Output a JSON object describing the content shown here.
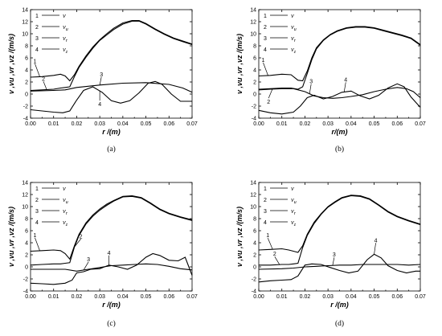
{
  "chart_data": [
    {
      "type": "line",
      "panel_label": "(a)",
      "xlabel": "r /(m)",
      "ylabel": "v ,vu ,vr ,vz /(m/s)",
      "xlim": [
        0,
        0.07
      ],
      "ylim": [
        -4,
        14
      ],
      "x_ticks": [
        "0.00",
        "0.01",
        "0.02",
        "0.03",
        "0.04",
        "0.05",
        "0.06",
        "0.07"
      ],
      "y_ticks": [
        "-4",
        "-2",
        "0",
        "2",
        "4",
        "6",
        "8",
        "10",
        "12",
        "14"
      ],
      "legend": {
        "numbers": [
          "1",
          "2",
          "3",
          "4"
        ],
        "symbols": [
          "v",
          "vu",
          "vr",
          "vz"
        ],
        "sub": [
          "",
          "u",
          "r",
          "z"
        ]
      },
      "curve_labels": [
        {
          "text": "1",
          "series": 0,
          "x": 0.004
        },
        {
          "text": "2",
          "series": 1,
          "x": 0.007
        },
        {
          "text": "3",
          "series": 2,
          "x": 0.03
        },
        {
          "text": "4",
          "series": 3,
          "x": 0.03
        }
      ],
      "series": [
        {
          "label": "1",
          "x": [
            0,
            0.005,
            0.01,
            0.013,
            0.015,
            0.017,
            0.019,
            0.021,
            0.024,
            0.027,
            0.03,
            0.033,
            0.036,
            0.04,
            0.044,
            0.047,
            0.05,
            0.054,
            0.058,
            0.062,
            0.066,
            0.07
          ],
          "y": [
            2.8,
            2.9,
            3.1,
            3.3,
            3.0,
            2.2,
            3.2,
            4.6,
            6.3,
            7.8,
            9.0,
            10.0,
            10.9,
            11.8,
            12.2,
            12.2,
            11.7,
            10.8,
            10.0,
            9.3,
            8.8,
            8.3
          ]
        },
        {
          "label": "2",
          "x": [
            0,
            0.005,
            0.01,
            0.013,
            0.015,
            0.017,
            0.019,
            0.021,
            0.024,
            0.027,
            0.03,
            0.033,
            0.036,
            0.04,
            0.044,
            0.047,
            0.05,
            0.054,
            0.058,
            0.062,
            0.066,
            0.07
          ],
          "y": [
            0.6,
            0.7,
            0.8,
            1.0,
            1.1,
            1.2,
            2.9,
            4.4,
            6.1,
            7.6,
            8.9,
            9.8,
            10.7,
            11.6,
            12.1,
            12.1,
            11.6,
            10.7,
            9.9,
            9.2,
            8.7,
            8.2
          ]
        },
        {
          "label": "3",
          "x": [
            0,
            0.01,
            0.015,
            0.02,
            0.03,
            0.04,
            0.05,
            0.06,
            0.066,
            0.07
          ],
          "y": [
            0.5,
            0.6,
            0.7,
            1.1,
            1.5,
            1.8,
            1.9,
            1.6,
            1.0,
            0.3
          ]
        },
        {
          "label": "4",
          "x": [
            0,
            0.005,
            0.01,
            0.014,
            0.017,
            0.02,
            0.023,
            0.027,
            0.031,
            0.035,
            0.039,
            0.043,
            0.047,
            0.051,
            0.054,
            0.057,
            0.061,
            0.065,
            0.07
          ],
          "y": [
            -2.6,
            -2.8,
            -3.0,
            -3.1,
            -2.8,
            -1.0,
            0.6,
            1.2,
            0.3,
            -1.1,
            -1.5,
            -1.1,
            0.2,
            1.8,
            2.1,
            1.6,
            0.0,
            -1.2,
            -1.2
          ]
        }
      ]
    },
    {
      "type": "line",
      "panel_label": "(b)",
      "xlabel": "r/(m)",
      "ylabel": "v ,vu ,vr ,vz /(m/s)",
      "xlim": [
        0,
        0.07
      ],
      "ylim": [
        -4,
        14
      ],
      "x_ticks": [
        "0.00",
        "0.01",
        "0.02",
        "0.03",
        "0.04",
        "0.05",
        "0.06",
        "0.07"
      ],
      "y_ticks": [
        "-4",
        "-2",
        "0",
        "2",
        "4",
        "6",
        "8",
        "10",
        "12",
        "14"
      ],
      "legend": {
        "numbers": [
          "1",
          "2",
          "3",
          "4"
        ],
        "symbols": [
          "v",
          "vu",
          "vr",
          "vz"
        ],
        "sub": [
          "",
          "u",
          "r",
          "z"
        ]
      },
      "curve_labels": [
        {
          "text": "1",
          "series": 0,
          "x": 0.004
        },
        {
          "text": "2",
          "series": 1,
          "x": 0.006
        },
        {
          "text": "3",
          "series": 2,
          "x": 0.022
        },
        {
          "text": "4",
          "series": 3,
          "x": 0.037
        }
      ],
      "series": [
        {
          "label": "1",
          "x": [
            0,
            0.005,
            0.01,
            0.014,
            0.017,
            0.019,
            0.021,
            0.023,
            0.025,
            0.028,
            0.031,
            0.034,
            0.038,
            0.042,
            0.046,
            0.05,
            0.054,
            0.058,
            0.062,
            0.066,
            0.07
          ],
          "y": [
            3.0,
            3.1,
            3.3,
            3.2,
            2.3,
            2.2,
            3.8,
            6.0,
            7.7,
            9.0,
            9.9,
            10.5,
            11.0,
            11.2,
            11.2,
            11.0,
            10.6,
            10.2,
            9.8,
            9.3,
            8.2
          ]
        },
        {
          "label": "2",
          "x": [
            0,
            0.005,
            0.01,
            0.014,
            0.017,
            0.019,
            0.021,
            0.023,
            0.025,
            0.028,
            0.031,
            0.034,
            0.038,
            0.042,
            0.046,
            0.05,
            0.054,
            0.058,
            0.062,
            0.066,
            0.07
          ],
          "y": [
            0.8,
            0.9,
            1.0,
            1.0,
            0.8,
            1.2,
            3.4,
            5.7,
            7.5,
            8.9,
            9.8,
            10.4,
            10.9,
            11.1,
            11.1,
            10.9,
            10.5,
            10.1,
            9.7,
            9.2,
            8.1
          ]
        },
        {
          "label": "3",
          "x": [
            0,
            0.005,
            0.01,
            0.015,
            0.02,
            0.024,
            0.028,
            0.032,
            0.036,
            0.04,
            0.045,
            0.05,
            0.055,
            0.06,
            0.064,
            0.067,
            0.07
          ],
          "y": [
            0.7,
            0.8,
            0.9,
            0.9,
            0.4,
            -0.3,
            -0.6,
            -0.7,
            -0.6,
            -0.4,
            -0.1,
            0.4,
            0.8,
            1.1,
            0.9,
            0.4,
            -0.6
          ]
        },
        {
          "label": "4",
          "x": [
            0,
            0.005,
            0.01,
            0.015,
            0.018,
            0.021,
            0.024,
            0.028,
            0.032,
            0.036,
            0.04,
            0.044,
            0.048,
            0.052,
            0.056,
            0.06,
            0.063,
            0.066,
            0.07
          ],
          "y": [
            -2.7,
            -3.1,
            -3.3,
            -3.0,
            -2.0,
            -0.6,
            -0.2,
            -0.8,
            -0.4,
            0.3,
            0.5,
            -0.3,
            -0.8,
            -0.2,
            1.0,
            1.7,
            1.2,
            -0.5,
            -2.2
          ]
        }
      ]
    },
    {
      "type": "line",
      "panel_label": "(c)",
      "xlabel": "r /(m)",
      "ylabel": "v ,vu ,vr ,vz /(m/s)",
      "xlim": [
        0,
        0.07
      ],
      "ylim": [
        -4,
        14
      ],
      "x_ticks": [
        "0.00",
        "0.01",
        "0.02",
        "0.03",
        "0.04",
        "0.05",
        "0.06",
        "0.07"
      ],
      "y_ticks": [
        "-4",
        "-2",
        "0",
        "2",
        "4",
        "6",
        "8",
        "10",
        "12",
        "14"
      ],
      "legend": {
        "numbers": [
          "1",
          "2",
          "3",
          "4"
        ],
        "symbols": [
          "v",
          "vu",
          "vr",
          "vz"
        ],
        "sub": [
          "",
          "u",
          "r",
          "z"
        ]
      },
      "curve_labels": [
        {
          "text": "1",
          "series": 0,
          "x": 0.004
        },
        {
          "text": "2",
          "series": 1,
          "x": 0.019
        },
        {
          "text": "3",
          "series": 2,
          "x": 0.023
        },
        {
          "text": "4",
          "series": 3,
          "x": 0.034
        }
      ],
      "series": [
        {
          "label": "1",
          "x": [
            0,
            0.005,
            0.01,
            0.013,
            0.015,
            0.017,
            0.019,
            0.021,
            0.024,
            0.027,
            0.03,
            0.033,
            0.036,
            0.04,
            0.044,
            0.048,
            0.052,
            0.056,
            0.06,
            0.065,
            0.07
          ],
          "y": [
            2.6,
            2.7,
            2.8,
            2.7,
            2.2,
            1.3,
            3.5,
            5.4,
            7.3,
            8.6,
            9.6,
            10.4,
            11.0,
            11.7,
            11.8,
            11.5,
            10.6,
            9.6,
            8.9,
            8.3,
            7.8
          ]
        },
        {
          "label": "2",
          "x": [
            0,
            0.005,
            0.01,
            0.013,
            0.015,
            0.017,
            0.019,
            0.021,
            0.024,
            0.027,
            0.03,
            0.033,
            0.036,
            0.04,
            0.044,
            0.048,
            0.052,
            0.056,
            0.06,
            0.065,
            0.07
          ],
          "y": [
            0.3,
            0.4,
            0.5,
            0.5,
            0.6,
            0.7,
            3.3,
            5.2,
            7.1,
            8.4,
            9.4,
            10.2,
            10.9,
            11.6,
            11.7,
            11.4,
            10.5,
            9.5,
            8.8,
            8.2,
            7.7
          ]
        },
        {
          "label": "3",
          "x": [
            0,
            0.01,
            0.015,
            0.02,
            0.025,
            0.03,
            0.035,
            0.04,
            0.045,
            0.05,
            0.055,
            0.06,
            0.065,
            0.07
          ],
          "y": [
            -0.4,
            -0.4,
            -0.4,
            -0.7,
            -0.4,
            -0.1,
            0.2,
            0.3,
            0.4,
            0.5,
            0.4,
            0.1,
            -0.3,
            -0.5
          ]
        },
        {
          "label": "4",
          "x": [
            0,
            0.005,
            0.01,
            0.015,
            0.018,
            0.02,
            0.023,
            0.026,
            0.03,
            0.034,
            0.038,
            0.042,
            0.046,
            0.05,
            0.053,
            0.056,
            0.06,
            0.064,
            0.067,
            0.07
          ],
          "y": [
            -2.7,
            -2.8,
            -2.9,
            -2.7,
            -2.2,
            -1.0,
            -0.8,
            -0.4,
            -0.3,
            0.3,
            0.0,
            -0.4,
            0.3,
            1.6,
            2.2,
            1.9,
            1.1,
            1.0,
            1.6,
            -1.4
          ]
        }
      ]
    },
    {
      "type": "line",
      "panel_label": "(d)",
      "xlabel": "r /(m)",
      "ylabel": "v ,vu ,vr ,vz /(m/s)",
      "xlim": [
        0,
        0.07
      ],
      "ylim": [
        -4,
        14
      ],
      "x_ticks": [
        "0.00",
        "0.01",
        "0.02",
        "0.03",
        "0.04",
        "0.05",
        "0.06",
        "0.07"
      ],
      "y_ticks": [
        "-4",
        "-2",
        "0",
        "2",
        "4",
        "6",
        "8",
        "10",
        "12",
        "14"
      ],
      "legend": {
        "numbers": [
          "1",
          "2",
          "3",
          "4"
        ],
        "symbols": [
          "v",
          "vu",
          "vr",
          "vz"
        ],
        "sub": [
          "",
          "u",
          "r",
          "z"
        ]
      },
      "curve_labels": [
        {
          "text": "1",
          "series": 0,
          "x": 0.006
        },
        {
          "text": "2",
          "series": 1,
          "x": 0.009
        },
        {
          "text": "3",
          "series": 2,
          "x": 0.032
        },
        {
          "text": "4",
          "series": 3,
          "x": 0.05
        }
      ],
      "series": [
        {
          "label": "1",
          "x": [
            0,
            0.005,
            0.01,
            0.013,
            0.015,
            0.017,
            0.019,
            0.021,
            0.024,
            0.027,
            0.03,
            0.033,
            0.036,
            0.04,
            0.044,
            0.048,
            0.052,
            0.056,
            0.06,
            0.065,
            0.07
          ],
          "y": [
            2.8,
            2.9,
            3.0,
            2.8,
            2.6,
            2.4,
            3.5,
            5.4,
            7.4,
            8.8,
            10.0,
            10.8,
            11.5,
            11.9,
            11.8,
            11.3,
            10.3,
            9.2,
            8.4,
            7.7,
            7.1
          ]
        },
        {
          "label": "2",
          "x": [
            0,
            0.005,
            0.01,
            0.013,
            0.015,
            0.017,
            0.019,
            0.021,
            0.024,
            0.027,
            0.03,
            0.033,
            0.036,
            0.04,
            0.044,
            0.048,
            0.052,
            0.056,
            0.06,
            0.065,
            0.07
          ],
          "y": [
            0.3,
            0.3,
            0.4,
            0.4,
            0.5,
            0.6,
            3.2,
            5.2,
            7.2,
            8.7,
            9.9,
            10.7,
            11.4,
            11.8,
            11.7,
            11.2,
            10.2,
            9.1,
            8.3,
            7.6,
            7.0
          ]
        },
        {
          "label": "3",
          "x": [
            0,
            0.01,
            0.015,
            0.02,
            0.025,
            0.03,
            0.035,
            0.04,
            0.045,
            0.05,
            0.055,
            0.06,
            0.065,
            0.07
          ],
          "y": [
            -0.4,
            -0.3,
            -0.2,
            0.0,
            0.1,
            0.2,
            0.3,
            0.3,
            0.4,
            0.4,
            0.4,
            0.4,
            0.3,
            0.4
          ]
        },
        {
          "label": "4",
          "x": [
            0,
            0.005,
            0.01,
            0.014,
            0.017,
            0.02,
            0.023,
            0.027,
            0.031,
            0.035,
            0.039,
            0.043,
            0.047,
            0.05,
            0.053,
            0.056,
            0.06,
            0.064,
            0.068,
            0.07
          ],
          "y": [
            -2.5,
            -2.3,
            -2.2,
            -2.1,
            -1.5,
            0.3,
            0.5,
            0.4,
            -0.1,
            -0.6,
            -1.0,
            -0.7,
            1.2,
            2.1,
            1.5,
            0.2,
            -0.6,
            -1.0,
            -0.7,
            -0.7
          ]
        }
      ]
    }
  ]
}
